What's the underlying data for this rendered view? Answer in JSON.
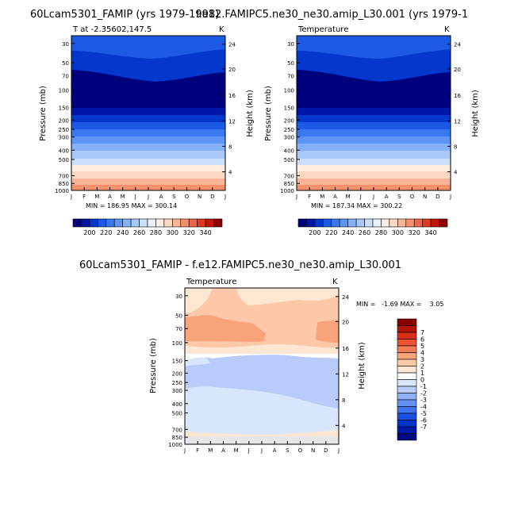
{
  "titles": {
    "left_title": "60Lcam5301_FAMIP (yrs 1979-1998)",
    "right_title": "f.e12.FAMIPC5.ne30_ne30.amip_L30.001 (yrs 1979-1",
    "bottom_title": "60Lcam5301_FAMIP - f.e12.FAMIPC5.ne30_ne30.amip_L30.001"
  },
  "colors": {
    "blues": [
      "#00007f",
      "#0016a8",
      "#0437cc",
      "#1c5ae5",
      "#3a78f0",
      "#5c95f6",
      "#82b0f9",
      "#a8c8fa",
      "#cde0fb",
      "#e8f2fb"
    ],
    "reds": [
      "#fdeee0",
      "#fcd8c2",
      "#f9b596",
      "#f5906c",
      "#ef6646",
      "#e2381f",
      "#c3160b",
      "#8e0000"
    ],
    "diff": [
      "#000b7f",
      "#0019ab",
      "#0033cc",
      "#1a4fe0",
      "#3f72ef",
      "#6690f4",
      "#8fb0f8",
      "#b8cbfa",
      "#d7e6fb",
      "#ffffff",
      "#fde7d3",
      "#fcc8a8",
      "#f9a37c",
      "#f47c56",
      "#ec5234",
      "#d92e17",
      "#b51306",
      "#8a0000"
    ]
  },
  "chart_data": [
    {
      "type": "heatmap",
      "panel": "left",
      "title": "60Lcam5301_FAMIP (yrs 1979-1998)",
      "subtitle_left": "T at -2.35602,147.5",
      "subtitle_right": "K",
      "ylabel": "Pressure (mb)",
      "ylabel_right": "Height (km)",
      "x": [
        "J",
        "F",
        "M",
        "A",
        "M",
        "J",
        "J",
        "A",
        "S",
        "O",
        "N",
        "D",
        "J"
      ],
      "pressure_ticks": [
        "30",
        "50",
        "70",
        "100",
        "150",
        "200",
        "250",
        "300",
        "400",
        "500",
        "700",
        "850",
        "1000"
      ],
      "height_ticks": [
        "24",
        "20",
        "16",
        "12",
        "8",
        "4"
      ],
      "stat_text": "MIN = 186.95  MAX = 300.14",
      "colorbar_labels": [
        "200",
        "220",
        "240",
        "260",
        "280",
        "300",
        "320",
        "340"
      ]
    },
    {
      "type": "heatmap",
      "panel": "right",
      "title": "f.e12.FAMIPC5.ne30_ne30.amip_L30.001 (yrs 1979-1",
      "subtitle_left": "Temperature",
      "subtitle_right": "K",
      "ylabel": "Pressure (mb)",
      "ylabel_right": "Height (km)",
      "x": [
        "J",
        "F",
        "M",
        "A",
        "M",
        "J",
        "J",
        "A",
        "S",
        "O",
        "N",
        "D",
        "J"
      ],
      "pressure_ticks": [
        "30",
        "50",
        "70",
        "100",
        "150",
        "200",
        "250",
        "300",
        "400",
        "500",
        "700",
        "850",
        "1000"
      ],
      "height_ticks": [
        "24",
        "20",
        "16",
        "12",
        "8",
        "4"
      ],
      "stat_text": "MIN = 187.34  MAX = 300.22",
      "colorbar_labels": [
        "200",
        "220",
        "240",
        "260",
        "280",
        "300",
        "320",
        "340"
      ]
    },
    {
      "type": "heatmap",
      "panel": "difference",
      "title": "60Lcam5301_FAMIP - f.e12.FAMIPC5.ne30_ne30.amip_L30.001",
      "subtitle_left": "Temperature",
      "subtitle_right": "K",
      "ylabel": "Pressure (mb)",
      "ylabel_right": "Height (km)",
      "x": [
        "J",
        "F",
        "M",
        "A",
        "M",
        "J",
        "J",
        "A",
        "S",
        "O",
        "N",
        "D",
        "J"
      ],
      "pressure_ticks": [
        "30",
        "50",
        "70",
        "100",
        "150",
        "200",
        "250",
        "300",
        "400",
        "500",
        "700",
        "850",
        "1000"
      ],
      "height_ticks": [
        "24",
        "20",
        "16",
        "12",
        "8",
        "4"
      ],
      "min_text": "MIN =   -1.69 MAX =    3.05",
      "colorbar_labels": [
        "7",
        "6",
        "5",
        "4",
        "3",
        "2",
        "1",
        "0",
        "-1",
        "-2",
        "-3",
        "-4",
        "-5",
        "-6",
        "-7"
      ]
    }
  ]
}
